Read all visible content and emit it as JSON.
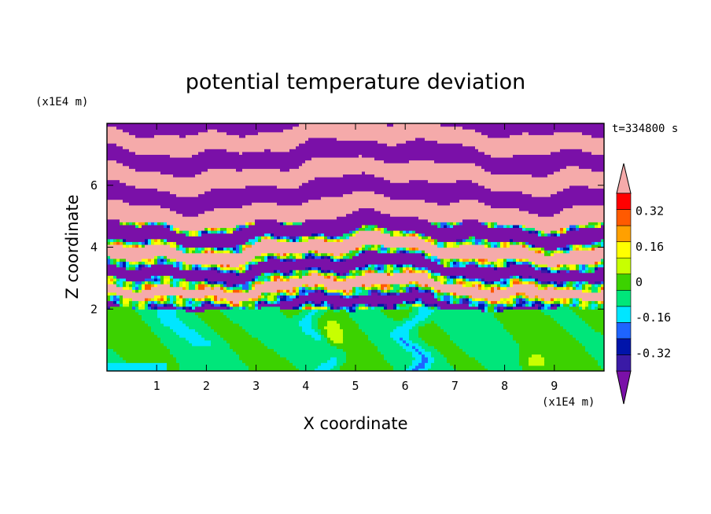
{
  "chart_data": {
    "type": "heatmap",
    "title": "potential temperature deviation",
    "xlabel": "X coordinate",
    "ylabel": "Z coordinate",
    "x_unit": "(x1E4 m)",
    "y_unit": "(x1E4 m)",
    "time_label": "t=334800 s",
    "xlim": [
      0,
      10
    ],
    "ylim": [
      0,
      8
    ],
    "x_ticks": [
      "1",
      "2",
      "3",
      "4",
      "5",
      "6",
      "7",
      "8",
      "9"
    ],
    "y_ticks": [
      "2",
      "4",
      "6"
    ],
    "colorbar": {
      "levels": [
        -0.48,
        -0.4,
        -0.32,
        -0.24,
        -0.16,
        -0.08,
        0,
        0.08,
        0.16,
        0.24,
        0.32,
        0.4,
        0.48
      ],
      "tick_labels": [
        "0.32",
        "0.16",
        "0",
        "-0.16",
        "-0.32"
      ],
      "tick_values": [
        0.32,
        0.16,
        0,
        -0.16,
        -0.32
      ],
      "colors": [
        "#7a10a8",
        "#3a1aa6",
        "#0014aa",
        "#1e64ff",
        "#00e6ff",
        "#00e67a",
        "#3cd200",
        "#c8ff00",
        "#ffff00",
        "#ffa000",
        "#ff5a00",
        "#ff0000",
        "#f5aaaa"
      ],
      "extend": "both"
    },
    "field_description": {
      "lower_layer_top_z": 2.0,
      "lower_layer_values": "near 0 (green), with cyan/blue plumes near x=4.3 and x=6.2 and yellow patches",
      "upper_layer_values": "alternating horizontal layers of about -0.48 (purple) and +0.48 (pink)",
      "turbulent_band_z": [
        2.0,
        4.5
      ]
    }
  }
}
